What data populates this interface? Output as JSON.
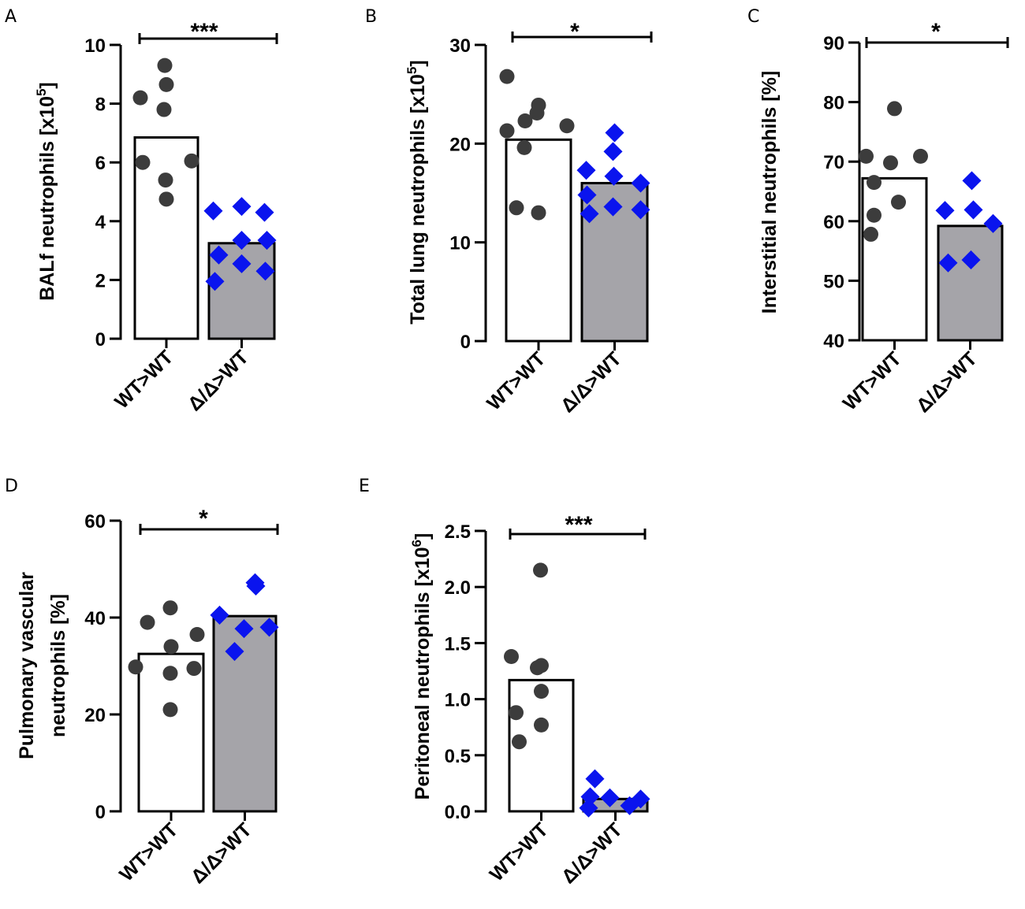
{
  "colors": {
    "wt_bar_fill": "#ffffff",
    "ko_bar_fill": "#a5a4a9",
    "wt_point": "#3c3c3c",
    "ko_point": "#0a14ee",
    "axis": "#000000"
  },
  "chart_data": [
    {
      "panel": "A",
      "type": "bar",
      "title": "",
      "ylabel": "BALf neutrophils [x10",
      "ylabel_sup": "5",
      "ylabel_end": "]",
      "ylim": [
        0,
        10
      ],
      "yticks": [
        "0",
        "2",
        "4",
        "6",
        "8",
        "10"
      ],
      "categories": [
        "WT>WT",
        "Δ/Δ>WT"
      ],
      "bars": [
        6.85,
        3.25
      ],
      "points": [
        [
          8.2,
          9.3,
          8.65,
          7.8,
          6.0,
          6.05,
          5.4,
          4.75
        ],
        [
          4.35,
          4.5,
          4.3,
          3.35,
          3.35,
          2.85,
          2.55,
          2.3,
          1.95
        ]
      ],
      "significance": "***"
    },
    {
      "panel": "B",
      "type": "bar",
      "title": "",
      "ylabel": "Total lung neutrophils [x10",
      "ylabel_sup": "5",
      "ylabel_end": "]",
      "ylim": [
        0,
        30
      ],
      "yticks": [
        "0",
        "10",
        "20",
        "30"
      ],
      "categories": [
        "WT>WT",
        "Δ/Δ>WT"
      ],
      "bars": [
        20.4,
        16.0
      ],
      "points": [
        [
          26.8,
          23.1,
          23.9,
          21.3,
          22.3,
          21.8,
          19.6,
          13.5,
          13.0
        ],
        [
          21.1,
          19.2,
          17.3,
          16.7,
          16.0,
          14.8,
          13.6,
          12.9,
          13.3
        ]
      ],
      "significance": "*"
    },
    {
      "panel": "C",
      "type": "bar",
      "title": "",
      "ylabel": "Interstitial neutrophils [%]",
      "ylabel_sup": "",
      "ylabel_end": "",
      "ylim": [
        40,
        90
      ],
      "yticks": [
        "40",
        "50",
        "60",
        "70",
        "80",
        "90"
      ],
      "categories": [
        "WT>WT",
        "Δ/Δ>WT"
      ],
      "bars": [
        67.2,
        59.2
      ],
      "points": [
        [
          78.9,
          70.9,
          69.8,
          70.9,
          66.5,
          63.2,
          61.0,
          57.8
        ],
        [
          66.8,
          61.8,
          61.9,
          59.6,
          53.5,
          53.0
        ]
      ],
      "significance": "*"
    },
    {
      "panel": "D",
      "type": "bar",
      "title": "",
      "ylabel": "Pulmonary vascular",
      "ylabel2": "neutrophils [%]",
      "ylim": [
        0,
        60
      ],
      "yticks": [
        "0",
        "20",
        "40",
        "60"
      ],
      "categories": [
        "WT>WT",
        "Δ/Δ>WT"
      ],
      "bars": [
        32.5,
        40.3
      ],
      "points": [
        [
          42.0,
          39.0,
          36.5,
          34.0,
          29.8,
          29.5,
          28.5,
          21.0
        ],
        [
          47.2,
          46.5,
          40.5,
          37.7,
          38.0,
          33.0
        ]
      ],
      "significance": "*"
    },
    {
      "panel": "E",
      "type": "bar",
      "title": "",
      "ylabel": "Peritoneal neutrophils [x10",
      "ylabel_sup": "6",
      "ylabel_end": "]",
      "ylim": [
        0,
        2.5
      ],
      "yticks": [
        "0.0",
        "0.5",
        "1.0",
        "1.5",
        "2.0",
        "2.5"
      ],
      "categories": [
        "WT>WT",
        "Δ/Δ>WT"
      ],
      "bars": [
        1.17,
        0.11
      ],
      "points": [
        [
          2.15,
          1.38,
          1.3,
          1.28,
          1.07,
          0.88,
          0.77,
          0.62
        ],
        [
          0.29,
          0.13,
          0.12,
          0.11,
          0.05,
          0.03
        ]
      ],
      "significance": "***"
    }
  ]
}
